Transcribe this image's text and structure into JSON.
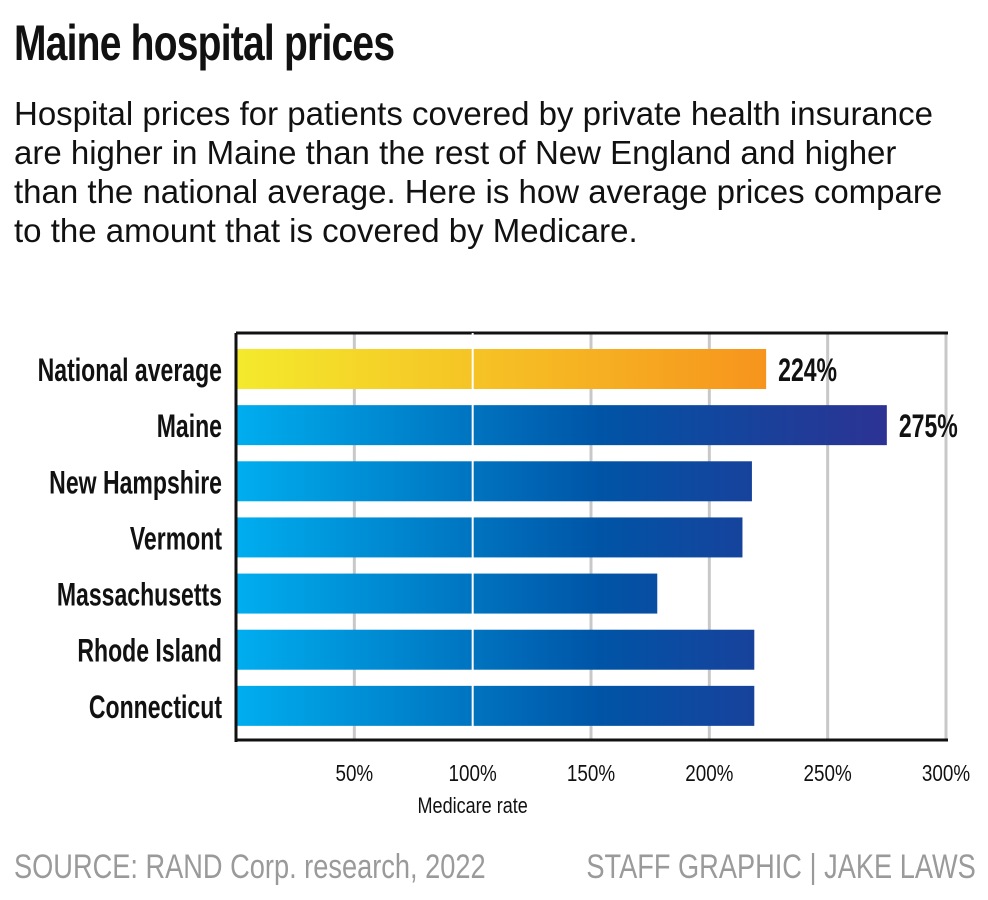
{
  "title": "Maine hospital prices",
  "subtitle": "Hospital prices for patients covered by private health insurance are higher in Maine than the rest of New England and higher than the national average. Here is how average prices compare to the amount that is covered by Medicare.",
  "source": "SOURCE: RAND Corp. research, 2022",
  "credit": "STAFF GRAPHIC | JAKE LAWS",
  "chart_data": {
    "type": "bar",
    "orientation": "horizontal",
    "categories": [
      "National average",
      "Maine",
      "New Hampshire",
      "Vermont",
      "Massachusetts",
      "Rhode Island",
      "Connecticut"
    ],
    "values": [
      224,
      275,
      218,
      214,
      178,
      219,
      219
    ],
    "data_labels": [
      "224%",
      "275%",
      "",
      "",
      "",
      "",
      ""
    ],
    "xlabel": "Medicare rate",
    "xlim": [
      0,
      300
    ],
    "xticks": [
      50,
      100,
      150,
      200,
      250,
      300
    ],
    "xtick_labels": [
      "50%",
      "100%",
      "150%",
      "200%",
      "250%",
      "300%"
    ],
    "reference_line": 100,
    "grid": true,
    "colors": {
      "highlight_start": "#f4ea2c",
      "highlight_end": "#f7941d",
      "bar_start": "#00aeef",
      "bar_mid": "#0054a6",
      "bar_end": "#2e3192",
      "grid": "#c8c8c8"
    }
  }
}
